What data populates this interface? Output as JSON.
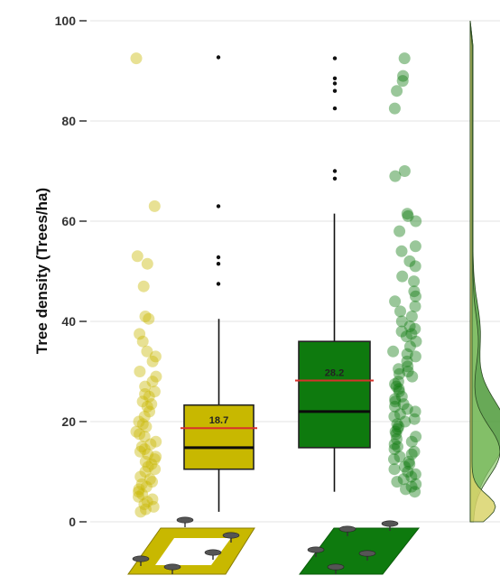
{
  "chart_data": {
    "type": "box",
    "title": "",
    "xlabel": "",
    "ylabel": "Tree density (Trees/ha)",
    "ylim": [
      0,
      100
    ],
    "yticks": [
      0,
      20,
      40,
      60,
      80,
      100
    ],
    "grid": true,
    "groups": [
      {
        "label": "",
        "icon": "parkland-field-outline-icon",
        "color": "#c8b800",
        "q1": 10.5,
        "median": 14.8,
        "q3": 23.3,
        "whisker_low": 2,
        "whisker_high": 40.5,
        "mean": 18.7,
        "mean_label": "18.7",
        "outliers": [
          47.5,
          51.5,
          52.8,
          63,
          92.7
        ],
        "points": [
          92.5,
          63,
          53,
          51.5,
          47,
          41,
          40.5,
          37.5,
          36,
          34,
          33,
          32,
          30,
          29,
          28,
          27,
          26,
          25.5,
          25,
          24,
          23.5,
          23,
          22,
          21,
          20,
          19.5,
          19,
          18,
          17.5,
          17,
          16,
          15.5,
          15,
          14.5,
          14,
          13.5,
          13,
          12.5,
          12,
          11.5,
          11,
          10.5,
          10,
          9,
          8.5,
          8,
          7.5,
          7,
          6.5,
          6,
          5.5,
          5,
          4.5,
          4,
          3.5,
          3,
          2.5,
          2
        ]
      },
      {
        "label": "",
        "icon": "parkland-field-filled-icon",
        "color": "#0e7a0e",
        "q1": 14.8,
        "median": 22,
        "q3": 36,
        "whisker_low": 6,
        "whisker_high": 61.5,
        "mean": 28.2,
        "mean_label": "28.2",
        "outliers": [
          68.5,
          70,
          82.5,
          86,
          87.5,
          88.5,
          92.5
        ],
        "points": [
          92.5,
          89,
          88,
          86,
          82.5,
          70,
          69,
          61.5,
          61,
          60,
          58,
          55,
          54,
          52,
          51,
          49,
          48,
          46,
          45,
          44,
          43,
          42,
          41,
          40,
          39,
          38.5,
          38,
          37.5,
          37,
          36,
          35,
          34,
          33.5,
          33,
          32,
          31,
          30.5,
          30,
          29.5,
          29,
          28,
          27.5,
          27,
          26.5,
          26,
          25,
          24.5,
          24,
          23.5,
          23,
          22.5,
          22,
          21.5,
          21,
          20.5,
          20,
          19.5,
          19,
          18.5,
          18,
          17.5,
          17,
          16.5,
          16,
          15.5,
          15,
          14.5,
          14,
          13.5,
          13,
          12.5,
          12,
          11.5,
          11,
          10.5,
          10,
          9.5,
          9,
          8.5,
          8,
          7.5,
          7,
          6.5,
          6
        ]
      }
    ],
    "density": {
      "series": [
        {
          "name": "",
          "color": "#4e9a3a",
          "opacity": 0.85
        },
        {
          "name": "",
          "color": "#8fc96f",
          "opacity": 0.7
        },
        {
          "name": "",
          "color": "#d9d36b",
          "opacity": 0.85
        }
      ]
    }
  }
}
